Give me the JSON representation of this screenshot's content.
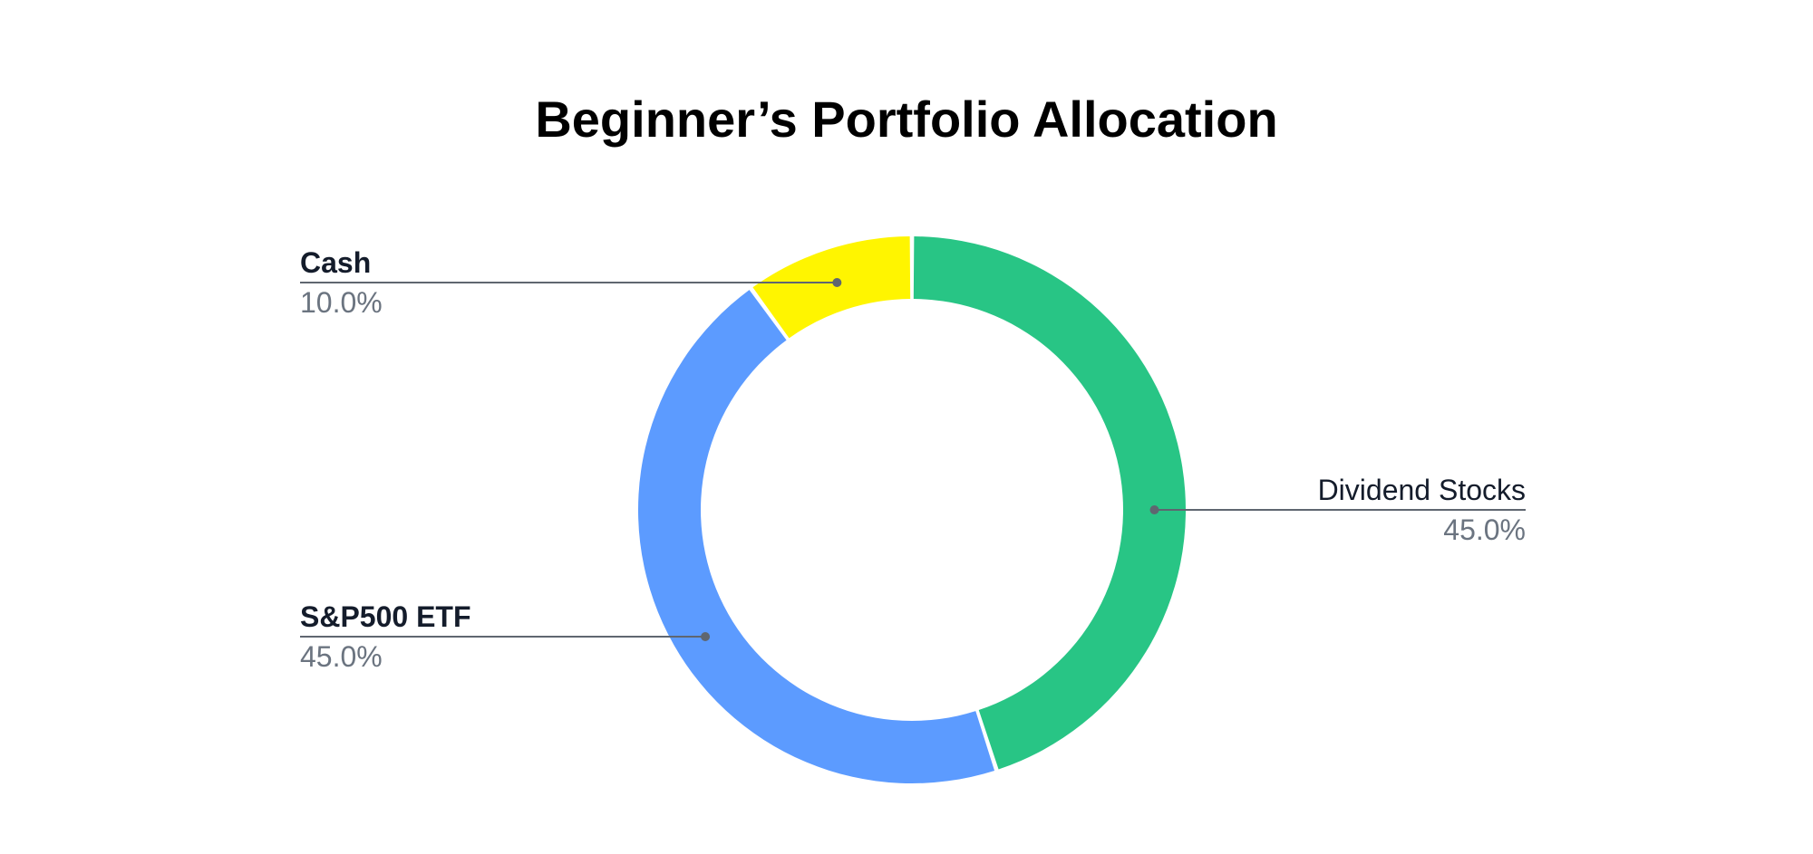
{
  "chart_data": {
    "type": "pie",
    "variant": "donut",
    "title": "Beginner’s Portfolio Allocation",
    "slices": [
      {
        "label": "Dividend Stocks",
        "value": 45.0,
        "value_label": "45.0%",
        "color": "#28c585"
      },
      {
        "label": "S&P500 ETF",
        "value": 45.0,
        "value_label": "45.0%",
        "color": "#5c9bff"
      },
      {
        "label": "Cash",
        "value": 10.0,
        "value_label": "10.0%",
        "color": "#fff500"
      }
    ],
    "start_angle_deg": 0,
    "direction": "clockwise",
    "legend": "none",
    "leader_line_color": "#5f6670"
  }
}
